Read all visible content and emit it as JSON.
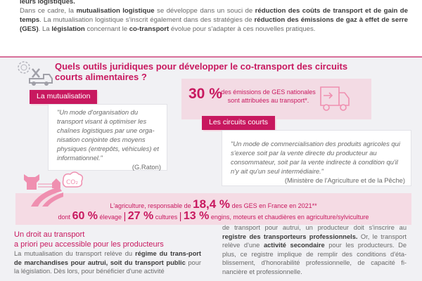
{
  "intro": {
    "line0": "leurs logistiques.",
    "p1": "Dans ce cadre, la ",
    "b1": "mutualisation logistique",
    "p2": " se développe dans un souci de ",
    "b2": "réduction des coûts de transport et de gain de temps",
    "p3": ". La mutualisation logistique s'inscrit également dans des stratégies de ",
    "b3": "réduction des émissions de gaz à effet de serre (GES)",
    "p4": ". La ",
    "b4": "législation",
    "p5": " concernant le ",
    "b5": "co-transport",
    "p6": " évolue pour s'adapter à ces nouvelles pratiques."
  },
  "title": "Quels outils juridiques pour développer le co-transport des circuits courts alimentaires ?",
  "mutualisation": {
    "label": "La mutualisation",
    "quote": "\"Un mode d'organisation du transport visant à optimiser les chaînes logistiques par une orga-nisation conjointe des moyens physiques (entrepôts, véhicules) et informationnel.\"",
    "source": "(G.Raton)"
  },
  "stat_transport": {
    "value": "30 %",
    "text1": "des émissions de GES nationales",
    "text2": "sont attribuées au transport*."
  },
  "circuits": {
    "label": "Les circuits courts",
    "quote": "\"Un mode de commercialisation des produits agricoles qui s'exerce soit par la vente directe du producteur au consommateur, soit par la vente indirecte à condition qu'il n'y ait qu'un seul intermédiaire.\"",
    "source": "(Ministère de l'Agriculture et de la Pêche)"
  },
  "agriculture": {
    "pre": "L'agriculture, responsable de ",
    "value": "18,4 %",
    "post": " des GES en France en 2021**",
    "dont": "dont ",
    "v1": "60 %",
    "t1": " élevage ",
    "sep": "|",
    "v2": "27 %",
    "t2": " cultures ",
    "v3": "13 %",
    "t3": " engins, moteurs et chaudières en agriculture/sylviculture"
  },
  "section": {
    "heading1": "Un droit au transport",
    "heading2": "a priori peu accessible pour les producteurs",
    "l1": "La mutualisation du transport relève du ",
    "lb1": "régime du trans-port de marchandises pour autrui, soit du transport public",
    "l2": " pour la législation. Dès lors, pour bénéficier d'une activité",
    "r1": "de transport pour autrui, un producteur doit s'inscrire au ",
    "rb1": "registre des transporteurs professionnels.",
    "r2": " Or, le transport relève d'une ",
    "rb2": "activité secondaire",
    "r3": " pour les producteurs. De plus, ce registre implique de remplir des conditions d'éta-blissement, d'honorabilité professionnelle, de capacité fi-nancière et professionnelle."
  },
  "colors": {
    "accent": "#c8185f",
    "light": "#f5dbe4",
    "icon": "#ef8fb0"
  }
}
